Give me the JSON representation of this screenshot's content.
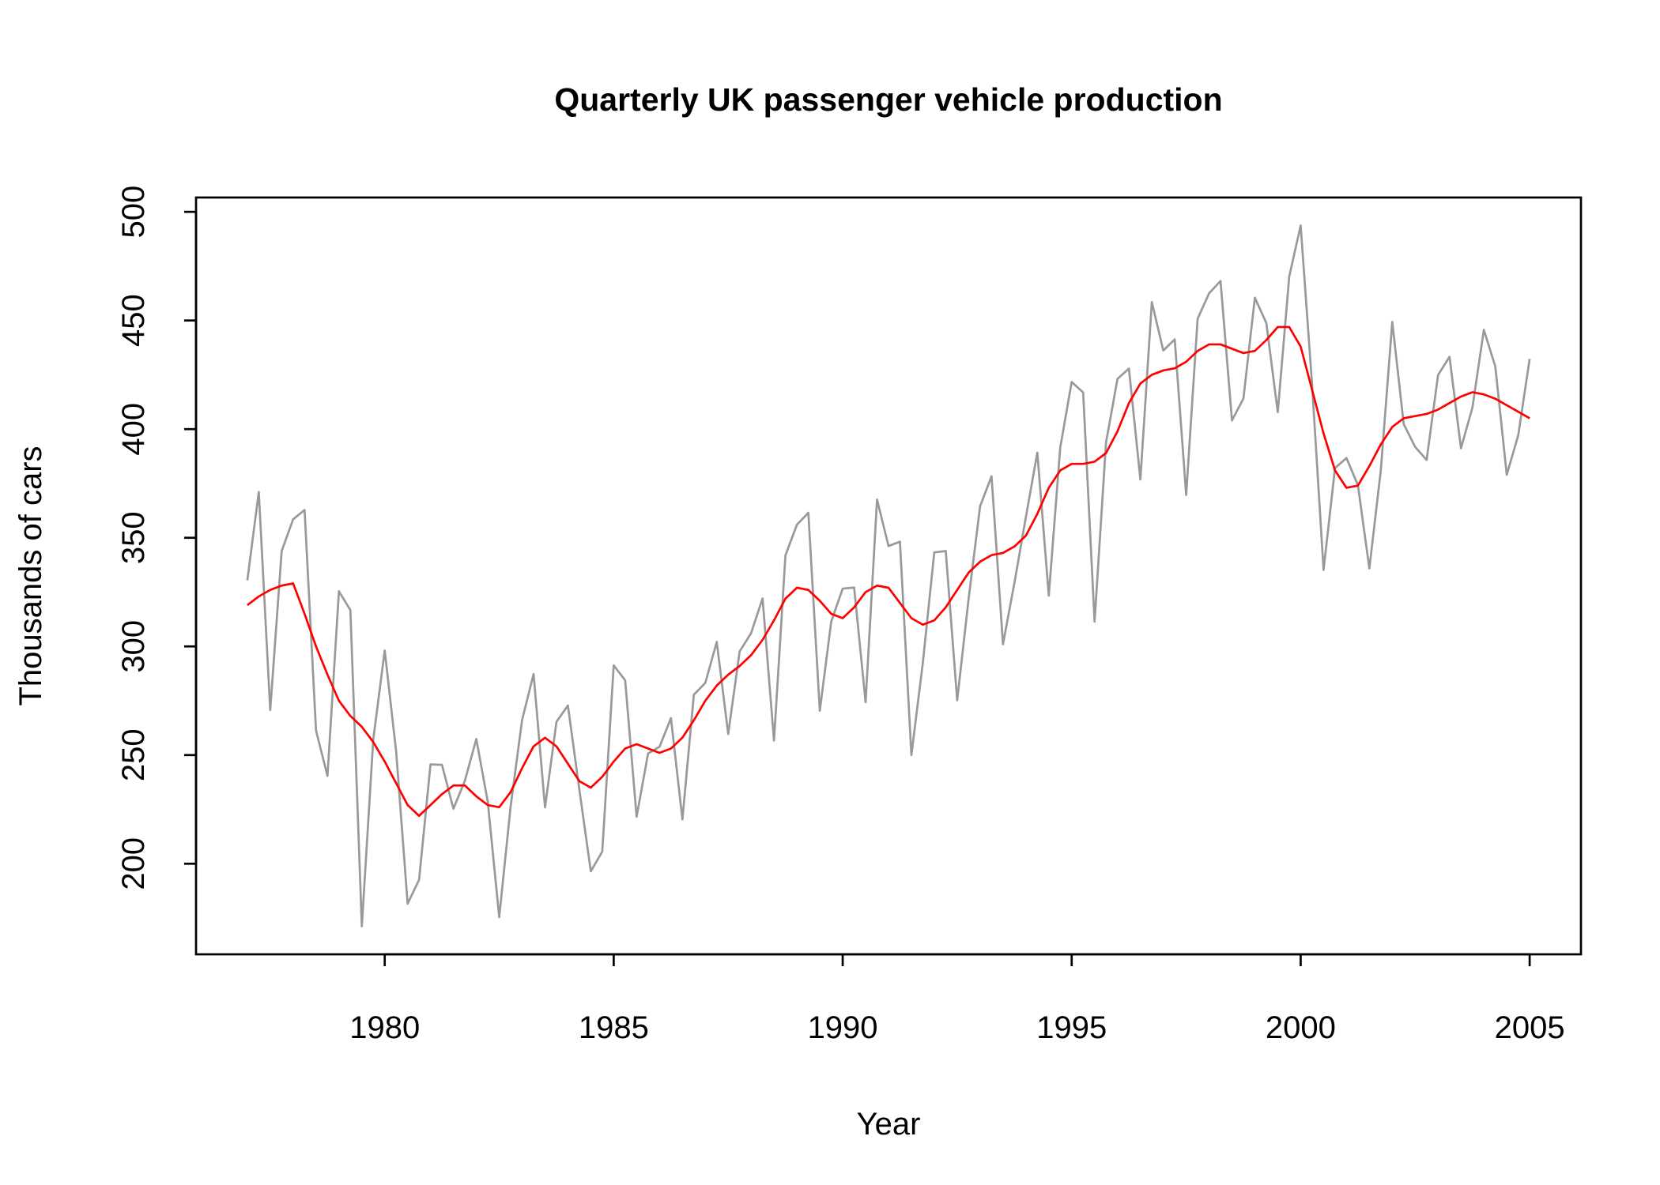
{
  "chart_data": {
    "type": "line",
    "title": "Quarterly UK passenger vehicle production",
    "x_label": "Year",
    "y_label": "Thousands of cars",
    "x": [
      1977,
      1977.25,
      1977.5,
      1977.75,
      1978,
      1978.25,
      1978.5,
      1978.75,
      1979,
      1979.25,
      1979.5,
      1979.75,
      1980,
      1980.25,
      1980.5,
      1980.75,
      1981,
      1981.25,
      1981.5,
      1981.75,
      1982,
      1982.25,
      1982.5,
      1982.75,
      1983,
      1983.25,
      1983.5,
      1983.75,
      1984,
      1984.25,
      1984.5,
      1984.75,
      1985,
      1985.25,
      1985.5,
      1985.75,
      1986,
      1986.25,
      1986.5,
      1986.75,
      1987,
      1987.25,
      1987.5,
      1987.75,
      1988,
      1988.25,
      1988.5,
      1988.75,
      1989,
      1989.25,
      1989.5,
      1989.75,
      1990,
      1990.25,
      1990.5,
      1990.75,
      1991,
      1991.25,
      1991.5,
      1991.75,
      1992,
      1992.25,
      1992.5,
      1992.75,
      1993,
      1993.25,
      1993.5,
      1993.75,
      1994,
      1994.25,
      1994.5,
      1994.75,
      1995,
      1995.25,
      1995.5,
      1995.75,
      1996,
      1996.25,
      1996.5,
      1996.75,
      1997,
      1997.25,
      1997.5,
      1997.75,
      1998,
      1998.25,
      1998.5,
      1998.75,
      1999,
      1999.25,
      1999.5,
      1999.75,
      2000,
      2000.25,
      2000.5,
      2000.75,
      2001,
      2001.25,
      2001.5,
      2001.75,
      2002,
      2002.25,
      2002.5,
      2002.75,
      2003,
      2003.25,
      2003.5,
      2003.75,
      2004,
      2004.25,
      2004.5,
      2004.75,
      2005
    ],
    "series": [
      {
        "color": "#999999",
        "values": [
          330.4,
          371.1,
          270.7,
          343.9,
          358.5,
          362.8,
          261.3,
          240.4,
          325.4,
          316.7,
          171.2,
          257.2,
          298.1,
          251.5,
          181.6,
          192.6,
          245.7,
          245.5,
          225.3,
          238.2,
          257.4,
          228.5,
          175.4,
          226.5,
          266.2,
          287.3,
          225.9,
          265.3,
          272.8,
          234.1,
          196.5,
          205.6,
          291.3,
          284.4,
          221.6,
          250.7,
          253.8,
          267.0,
          220.4,
          277.8,
          283.2,
          302.1,
          259.7,
          297.7,
          306.1,
          322.1,
          256.7,
          341.9,
          356.0,
          361.5,
          270.4,
          311.5,
          326.6,
          327.1,
          274.3,
          367.6,
          346.2,
          348.2,
          250.0,
          292.5,
          343.3,
          343.9,
          275.2,
          322.0,
          364.5,
          378.3,
          301.0,
          329.3,
          359.5,
          389.2,
          323.4,
          391.5,
          421.7,
          416.9,
          311.4,
          393.9,
          423.1,
          427.9,
          376.8,
          458.5,
          436.2,
          441.3,
          369.7,
          450.8,
          462.5,
          468.2,
          404.0,
          414.1,
          460.5,
          448.8,
          407.8,
          470.2,
          493.7,
          420.2,
          335.2,
          382.1,
          386.7,
          374.2,
          335.9,
          381.1,
          449.4,
          402.3,
          391.8,
          385.8,
          424.9,
          433.3,
          391.2,
          409.9,
          445.7,
          428.8,
          379.0,
          397.1,
          432.3
        ]
      },
      {
        "color": "#ff0000",
        "values": [
          319,
          323,
          326,
          328,
          329,
          315,
          300,
          287,
          275,
          268,
          263,
          256,
          247,
          237,
          227,
          222,
          227,
          232,
          236,
          236,
          231,
          227,
          226,
          233,
          244,
          254,
          258,
          254,
          246,
          238,
          235,
          240,
          247,
          253,
          255,
          253,
          251,
          253,
          258,
          266,
          275,
          282,
          287,
          291,
          296,
          303,
          312,
          322,
          327,
          326,
          321,
          315,
          313,
          318,
          325,
          328,
          327,
          320,
          313,
          310,
          312,
          318,
          326,
          334,
          339,
          342,
          343,
          346,
          351,
          361,
          373,
          381,
          384,
          384,
          385,
          389,
          399,
          412,
          421,
          425,
          427,
          428,
          431,
          436,
          439,
          439,
          437,
          435,
          436,
          441,
          447,
          447,
          438,
          418,
          398,
          381,
          373,
          374,
          383,
          393,
          401,
          405,
          406,
          407,
          409,
          412,
          415,
          417,
          416,
          414,
          411,
          408,
          405
        ]
      }
    ],
    "xlim": [
      1975.88,
      2006.12
    ],
    "xticks": [
      1980,
      1985,
      1990,
      1995,
      2000,
      2005
    ],
    "ylim": [
      158.3,
      506.6
    ],
    "yticks": [
      200,
      250,
      300,
      350,
      400,
      450,
      500
    ],
    "grid": false
  }
}
